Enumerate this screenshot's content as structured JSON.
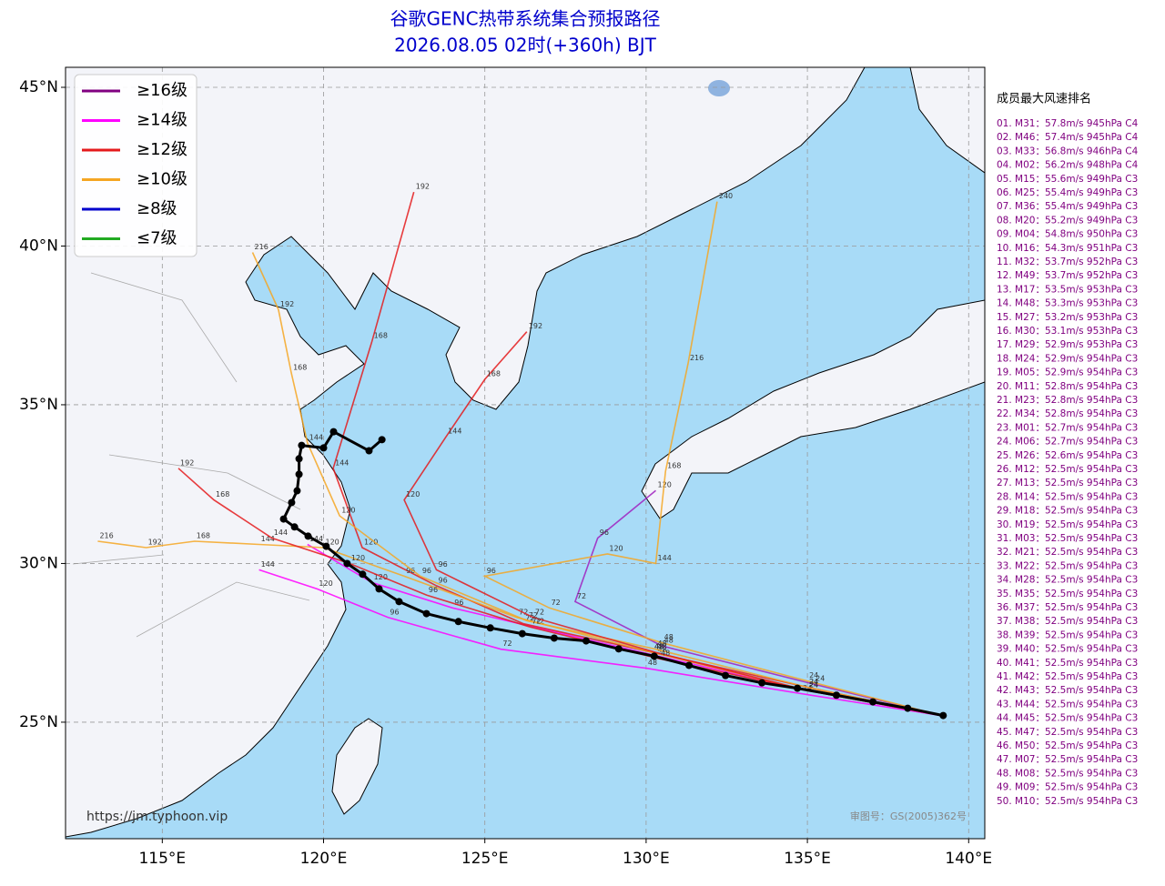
{
  "map": {
    "title": [
      "谷歌GENC热带系统集合预报路径",
      "2026.08.05 02时(+360h) BJT"
    ],
    "xlim": [
      112,
      140.5
    ],
    "ylim": [
      21.33,
      45.63
    ],
    "xticks": [
      {
        "value": 115,
        "label": "115°E"
      },
      {
        "value": 120,
        "label": "120°E"
      },
      {
        "value": 125,
        "label": "125°E"
      },
      {
        "value": 130,
        "label": "130°E"
      },
      {
        "value": 135,
        "label": "135°E"
      },
      {
        "value": 140,
        "label": "140°E"
      }
    ],
    "yticks": [
      {
        "value": 25,
        "label": "25°N"
      },
      {
        "value": 30,
        "label": "30°N"
      },
      {
        "value": 35,
        "label": "35°N"
      },
      {
        "value": 40,
        "label": "40°N"
      },
      {
        "value": 45,
        "label": "45°N"
      }
    ],
    "legend": [
      {
        "name": "≥16级",
        "color": "#800080"
      },
      {
        "name": "≥14级",
        "color": "#ff00ff"
      },
      {
        "name": "≥12级",
        "color": "#e41a1c"
      },
      {
        "name": "≥10级",
        "color": "#f5a623"
      },
      {
        "name": "≥8级",
        "color": "#0000cc"
      },
      {
        "name": "≤7级",
        "color": "#22aa22"
      }
    ],
    "tracks": [
      {
        "color": "#ff00ff",
        "lon": [
          139.2,
          135.0,
          130.3,
          126.5,
          124.0,
          121.5,
          119.5
        ],
        "lat": [
          25.2,
          26.0,
          27.1,
          28.0,
          28.6,
          29.4,
          30.6
        ],
        "hours": [
          null,
          24,
          48,
          72,
          96,
          120,
          144
        ]
      },
      {
        "color": "#a020c0",
        "lon": [
          139.2,
          135.2,
          130.5,
          127.8,
          128.5,
          130.3
        ],
        "lat": [
          25.2,
          26.2,
          27.4,
          28.8,
          30.8,
          32.3
        ],
        "hours": [
          null,
          24,
          48,
          72,
          96,
          120
        ]
      },
      {
        "color": "#ff00ff",
        "lon": [
          139.2,
          134.8,
          130.0,
          125.5,
          122.0,
          119.8,
          118.0
        ],
        "lat": [
          25.2,
          25.9,
          26.7,
          27.3,
          28.3,
          29.2,
          29.8
        ],
        "hours": [
          null,
          24,
          48,
          72,
          96,
          120,
          144
        ]
      },
      {
        "color": "#e41a1c",
        "lon": [
          139.2,
          135.0,
          130.2,
          126.2,
          123.5,
          121.2,
          120.3,
          121.5,
          122.8
        ],
        "lat": [
          25.2,
          26.1,
          27.2,
          28.1,
          29.3,
          30.5,
          33.0,
          37.0,
          41.7
        ],
        "hours": [
          null,
          24,
          48,
          72,
          96,
          120,
          144,
          168,
          192
        ]
      },
      {
        "color": "#f5a623",
        "lon": [
          139.2,
          135.0,
          130.5,
          127.0,
          125.0,
          128.8,
          130.3,
          130.6,
          131.3,
          132.2
        ],
        "lat": [
          25.2,
          26.3,
          27.5,
          28.6,
          29.6,
          30.3,
          30.0,
          32.9,
          36.3,
          41.4
        ],
        "hours": [
          null,
          24,
          48,
          72,
          96,
          120,
          144,
          168,
          216,
          240
        ]
      },
      {
        "color": "#f5a623",
        "lon": [
          139.2,
          135.0,
          130.2,
          126.0,
          122.5,
          120.0,
          118.0,
          116.0,
          114.5,
          113.0
        ],
        "lat": [
          25.2,
          26.0,
          27.2,
          28.3,
          29.6,
          30.5,
          30.6,
          30.7,
          30.5,
          30.7
        ],
        "hours": [
          null,
          24,
          48,
          72,
          96,
          120,
          144,
          168,
          192,
          216
        ]
      },
      {
        "color": "#f5a623",
        "lon": [
          139.2,
          135.0,
          130.3,
          126.3,
          123.0,
          120.5,
          119.5,
          119.0,
          118.6,
          117.8
        ],
        "lat": [
          25.2,
          26.1,
          27.3,
          28.2,
          29.6,
          31.5,
          33.8,
          36.0,
          38.0,
          39.8
        ],
        "hours": [
          null,
          24,
          48,
          72,
          96,
          120,
          144,
          168,
          192,
          216
        ]
      },
      {
        "color": "#e41a1c",
        "lon": [
          139.2,
          135.0,
          130.3,
          126.5,
          123.5,
          122.5,
          123.8,
          125.0,
          126.3
        ],
        "lat": [
          25.2,
          26.0,
          27.2,
          28.3,
          29.8,
          32.0,
          34.0,
          35.8,
          37.3
        ],
        "hours": [
          null,
          24,
          48,
          72,
          96,
          120,
          144,
          168,
          192
        ]
      },
      {
        "color": "#e41a1c",
        "lon": [
          139.2,
          135.0,
          130.4,
          126.4,
          123.2,
          120.8,
          118.4,
          116.6,
          115.5
        ],
        "lat": [
          25.2,
          26.0,
          27.0,
          28.0,
          29.0,
          30.0,
          30.8,
          32.0,
          33.0
        ],
        "hours": [
          null,
          24,
          48,
          72,
          96,
          120,
          144,
          168,
          192
        ]
      }
    ],
    "mean_track": {
      "color": "#000000",
      "lon": [
        139.21,
        138.11,
        137.03,
        135.9,
        134.69,
        133.59,
        132.46,
        131.33,
        130.25,
        129.15,
        128.14,
        127.15,
        126.16,
        125.17,
        124.18,
        123.19,
        122.34,
        121.72,
        121.21,
        120.73,
        120.08,
        119.52,
        119.1,
        118.76,
        119.01,
        119.18,
        119.24,
        119.24,
        119.32,
        120.0,
        120.31,
        121.41,
        121.81
      ],
      "lat": [
        25.21,
        25.44,
        25.64,
        25.85,
        26.07,
        26.24,
        26.47,
        26.79,
        27.08,
        27.31,
        27.56,
        27.65,
        27.79,
        27.97,
        28.17,
        28.42,
        28.8,
        29.2,
        29.66,
        30.0,
        30.54,
        30.86,
        31.15,
        31.4,
        31.92,
        32.29,
        32.81,
        33.3,
        33.72,
        33.64,
        34.15,
        33.55,
        33.9
      ]
    },
    "ranking": {
      "title": "成员最大风速排名",
      "items": [
        "01. M31：57.8m/s 945hPa C4",
        "02. M46：57.4m/s 945hPa C4",
        "03. M33：56.8m/s 946hPa C4",
        "04. M02：56.2m/s 948hPa C4",
        "05. M15：55.6m/s 949hPa C3",
        "06. M25：55.4m/s 949hPa C3",
        "07. M36：55.4m/s 949hPa C3",
        "08. M20：55.2m/s 949hPa C3",
        "09. M04：54.8m/s 950hPa C3",
        "10. M16：54.3m/s 951hPa C3",
        "11. M32：53.7m/s 952hPa C3",
        "12. M49：53.7m/s 952hPa C3",
        "13. M17：53.5m/s 953hPa C3",
        "14. M48：53.3m/s 953hPa C3",
        "15. M27：53.2m/s 953hPa C3",
        "16. M30：53.1m/s 953hPa C3",
        "17. M29：52.9m/s 953hPa C3",
        "18. M24：52.9m/s 954hPa C3",
        "19. M05：52.9m/s 954hPa C3",
        "20. M11：52.8m/s 954hPa C3",
        "21. M23：52.8m/s 954hPa C3",
        "22. M34：52.8m/s 954hPa C3",
        "23. M01：52.7m/s 954hPa C3",
        "24. M06：52.7m/s 954hPa C3",
        "25. M26：52.6m/s 954hPa C3",
        "26. M12：52.5m/s 954hPa C3",
        "27. M13：52.5m/s 954hPa C3",
        "28. M14：52.5m/s 954hPa C3",
        "29. M18：52.5m/s 954hPa C3",
        "30. M19：52.5m/s 954hPa C3",
        "31. M03：52.5m/s 954hPa C3",
        "32. M21：52.5m/s 954hPa C3",
        "33. M22：52.5m/s 954hPa C3",
        "34. M28：52.5m/s 954hPa C3",
        "35. M35：52.5m/s 954hPa C3",
        "36. M37：52.5m/s 954hPa C3",
        "37. M38：52.5m/s 954hPa C3",
        "38. M39：52.5m/s 954hPa C3",
        "39. M40：52.5m/s 954hPa C3",
        "40. M41：52.5m/s 954hPa C3",
        "41. M42：52.5m/s 954hPa C3",
        "42. M43：52.5m/s 954hPa C3",
        "43. M44：52.5m/s 954hPa C3",
        "44. M45：52.5m/s 954hPa C3",
        "45. M47：52.5m/s 954hPa C3",
        "46. M50：52.5m/s 954hPa C3",
        "47. M07：52.5m/s 954hPa C3",
        "48. M08：52.5m/s 954hPa C3",
        "49. M09：52.5m/s 954hPa C3",
        "50. M10：52.5m/s 954hPa C3"
      ]
    },
    "source": "https://jm.typhoon.vip",
    "approval": "审图号：GS(2005)362号"
  }
}
